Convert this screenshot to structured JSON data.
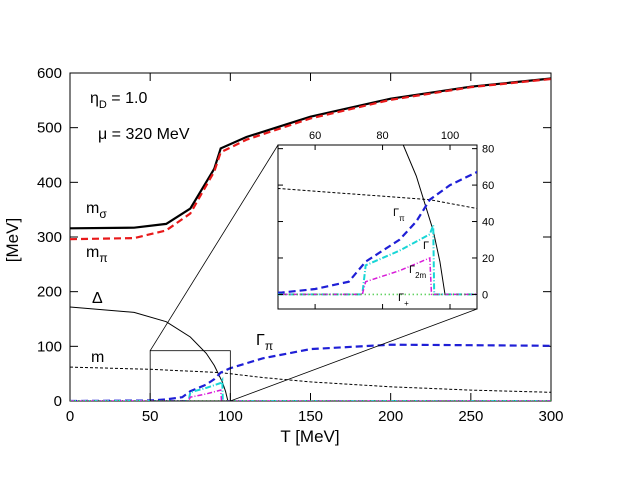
{
  "chart_data": {
    "type": "line",
    "xlabel": "T [MeV]",
    "ylabel": "[MeV]",
    "xlim": [
      0,
      300
    ],
    "ylim": [
      0,
      600
    ],
    "xticks": [
      0,
      50,
      100,
      150,
      200,
      250,
      300
    ],
    "yticks": [
      0,
      100,
      200,
      300,
      400,
      500,
      600
    ],
    "annotations": {
      "eta": "η_D = 1.0",
      "mu": "μ = 320 MeV"
    },
    "series": [
      {
        "name": "m_σ",
        "label_main": "m",
        "label_sub": "σ",
        "color": "#000000",
        "dash": "",
        "width": 2.2,
        "points": [
          [
            0,
            316
          ],
          [
            40,
            317
          ],
          [
            60,
            324
          ],
          [
            75,
            352
          ],
          [
            90,
            425
          ],
          [
            94,
            462
          ],
          [
            110,
            483
          ],
          [
            150,
            520
          ],
          [
            200,
            553
          ],
          [
            250,
            575
          ],
          [
            300,
            590
          ]
        ]
      },
      {
        "name": "m_π",
        "label_main": "m",
        "label_sub": "π",
        "color": "#e8191a",
        "dash": "7,4",
        "width": 2.2,
        "points": [
          [
            0,
            296
          ],
          [
            40,
            298
          ],
          [
            60,
            312
          ],
          [
            75,
            343
          ],
          [
            90,
            420
          ],
          [
            94,
            455
          ],
          [
            110,
            478
          ],
          [
            150,
            517
          ],
          [
            200,
            551
          ],
          [
            250,
            574
          ],
          [
            300,
            589
          ]
        ]
      },
      {
        "name": "Δ",
        "label_main": "Δ",
        "label_sub": "",
        "color": "#000000",
        "dash": "",
        "width": 1,
        "points": [
          [
            0,
            172
          ],
          [
            40,
            162
          ],
          [
            60,
            145
          ],
          [
            75,
            117
          ],
          [
            85,
            87
          ],
          [
            90,
            65
          ],
          [
            95,
            35
          ],
          [
            97,
            18
          ],
          [
            98.5,
            0
          ]
        ]
      },
      {
        "name": "m",
        "label_main": "m",
        "label_sub": "",
        "color": "#000000",
        "dash": "3,2",
        "width": 1,
        "points": [
          [
            0,
            62
          ],
          [
            50,
            58
          ],
          [
            94,
            52
          ],
          [
            120,
            43
          ],
          [
            150,
            35
          ],
          [
            200,
            26
          ],
          [
            250,
            20
          ],
          [
            300,
            16
          ]
        ]
      },
      {
        "name": "Γ_π",
        "label_main": "Γ",
        "label_sub": "π",
        "color": "#1f1fd6",
        "dash": "7,4",
        "width": 2.2,
        "points": [
          [
            0,
            0
          ],
          [
            50,
            1
          ],
          [
            60,
            3
          ],
          [
            70,
            7
          ],
          [
            75,
            18
          ],
          [
            85,
            30
          ],
          [
            90,
            40
          ],
          [
            94,
            52
          ],
          [
            100,
            60
          ],
          [
            120,
            78
          ],
          [
            150,
            95
          ],
          [
            200,
            103
          ],
          [
            250,
            102
          ],
          [
            300,
            101
          ]
        ]
      },
      {
        "name": "Γ",
        "label_main": "Γ",
        "label_sub": "",
        "color": "#18d6d6",
        "dash": "6,2,1,2",
        "width": 2,
        "points": [
          [
            0,
            0
          ],
          [
            74,
            0
          ],
          [
            75,
            16
          ],
          [
            85,
            24
          ],
          [
            94,
            33
          ],
          [
            95,
            38
          ],
          [
            95.3,
            0
          ],
          [
            300,
            0
          ]
        ]
      },
      {
        "name": "Γ_2m",
        "label_main": "Γ",
        "label_sub": "2m",
        "color": "#d81bd8",
        "dash": "5,2,1,2",
        "width": 1.5,
        "points": [
          [
            0,
            0
          ],
          [
            74,
            0
          ],
          [
            75,
            7
          ],
          [
            85,
            13
          ],
          [
            94,
            20
          ],
          [
            94.5,
            0
          ],
          [
            300,
            0
          ]
        ]
      },
      {
        "name": "Γ_+",
        "label_main": "Γ",
        "label_sub": "+",
        "color": "#1fbf1f",
        "dash": "1,3",
        "width": 1.6,
        "points": [
          [
            0,
            0
          ],
          [
            300,
            0
          ]
        ]
      }
    ],
    "inset": {
      "xlim": [
        49,
        108
      ],
      "ylim": [
        -8,
        82
      ],
      "xticks": [
        60,
        80,
        100
      ],
      "yticks": [
        0,
        20,
        40,
        60,
        80
      ],
      "zoom_box": {
        "x": [
          50,
          100
        ],
        "y": [
          0,
          92
        ]
      }
    }
  }
}
